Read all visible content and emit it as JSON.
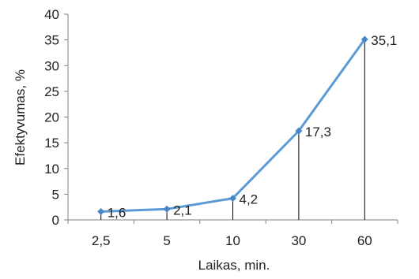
{
  "chart_data": {
    "type": "line",
    "categories": [
      "2,5",
      "5",
      "10",
      "30",
      "60"
    ],
    "values": [
      1.6,
      2.1,
      4.2,
      17.3,
      35.1
    ],
    "value_labels": [
      "1,6",
      "2,1",
      "4,2",
      "17,3",
      "35,1"
    ],
    "title": "",
    "xlabel": "Laikas, min.",
    "ylabel": "Efektyvumas, %",
    "ylim": [
      0,
      40
    ],
    "y_ticks": [
      0,
      5,
      10,
      15,
      20,
      25,
      30,
      35,
      40
    ],
    "grid": false,
    "drop_lines": true,
    "series_color": "#5B9BD5",
    "marker_color": "#4A86C5",
    "axis_color": "#7f7f7f",
    "drop_line_color": "#000000"
  }
}
